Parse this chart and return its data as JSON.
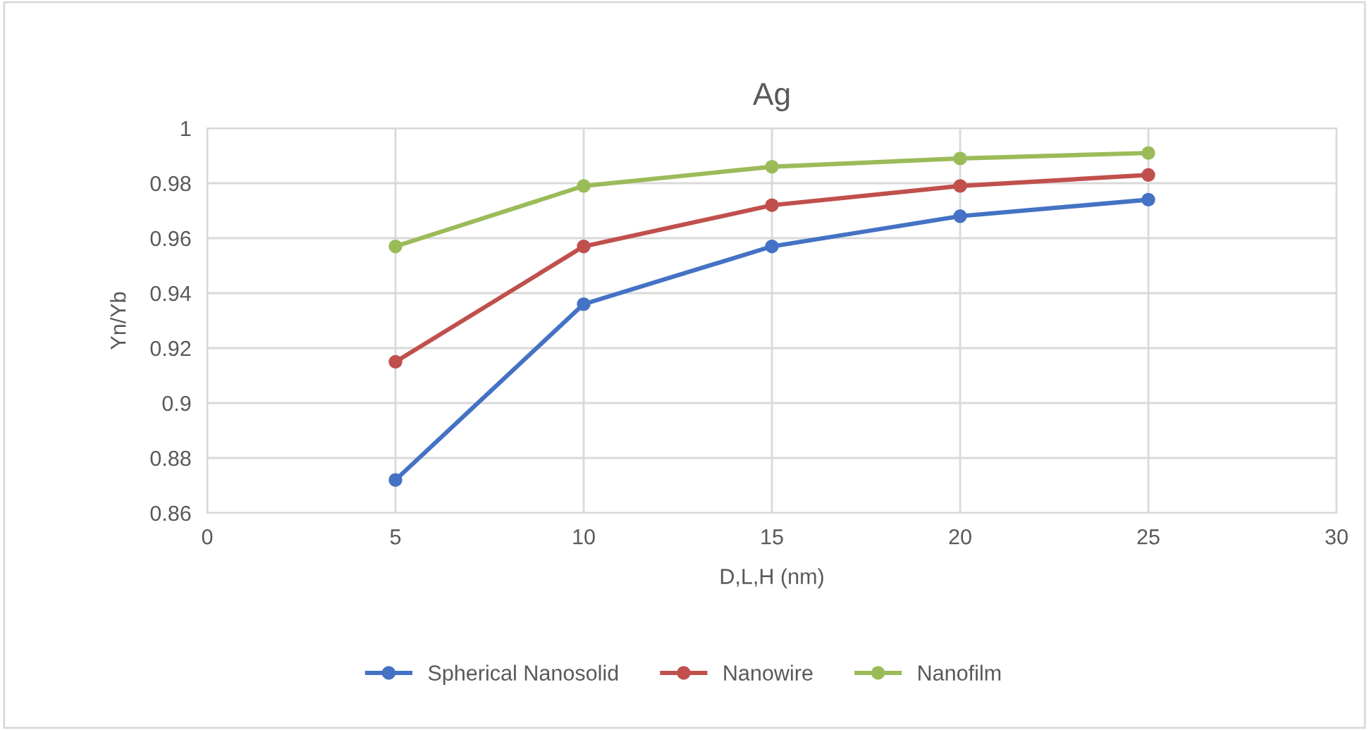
{
  "chart_data": {
    "type": "line",
    "title": "Ag",
    "xlabel": "D,L,H (nm)",
    "ylabel": "Yn/Yb",
    "x": [
      5,
      10,
      15,
      20,
      25
    ],
    "series": [
      {
        "name": "Spherical Nanosolid",
        "color": "#4472c4",
        "values": [
          0.872,
          0.936,
          0.957,
          0.968,
          0.974
        ]
      },
      {
        "name": "Nanowire",
        "color": "#c0504d",
        "values": [
          0.915,
          0.957,
          0.972,
          0.979,
          0.983
        ]
      },
      {
        "name": "Nanofilm",
        "color": "#9bbb59",
        "values": [
          0.957,
          0.979,
          0.986,
          0.989,
          0.991
        ]
      }
    ],
    "xlim": [
      0,
      30
    ],
    "xticks": [
      0,
      5,
      10,
      15,
      20,
      25,
      30
    ],
    "ylim": [
      0.86,
      1
    ],
    "yticks": [
      0.86,
      0.88,
      0.9,
      0.92,
      0.94,
      0.96,
      0.98,
      1
    ],
    "grid": true,
    "legend": "bottom",
    "marker": "circle",
    "line_style": "solid"
  }
}
